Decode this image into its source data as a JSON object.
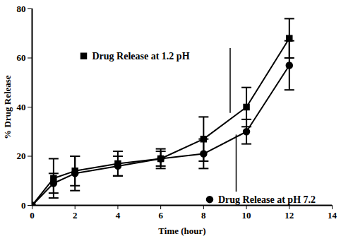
{
  "chart_data": {
    "type": "line",
    "x_label": "Time (hour)",
    "y_label": "% Drug Release",
    "x": [
      0,
      1,
      2,
      4,
      6,
      8,
      10,
      12
    ],
    "series": [
      {
        "name": "Drug Release at 1.2 pH",
        "color": "#000000",
        "marker": "square",
        "values": [
          0,
          11,
          14,
          17,
          19,
          27,
          40,
          68
        ],
        "error": [
          0,
          8,
          6,
          5,
          3,
          9,
          8,
          8
        ]
      },
      {
        "name": "Drug Release at pH 7.2",
        "color": "#000000",
        "marker": "circle",
        "values": [
          0,
          9,
          13,
          16,
          19,
          21,
          30,
          57
        ],
        "error": [
          0,
          4,
          7,
          4,
          4,
          6,
          5,
          10
        ]
      }
    ],
    "xlim": [
      0,
      14
    ],
    "ylim": [
      0,
      80
    ],
    "xticks": [
      0,
      2,
      4,
      6,
      8,
      10,
      12,
      14
    ],
    "yticks": [
      0,
      20,
      40,
      60,
      80
    ],
    "grid": false
  }
}
